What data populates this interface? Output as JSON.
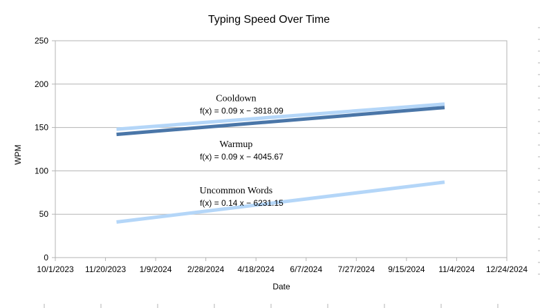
{
  "chart_data": {
    "type": "line",
    "title": "Typing Speed Over Time",
    "xlabel": "Date",
    "ylabel": "WPM",
    "x_axis_type": "date",
    "xlim": [
      "2023-10-01",
      "2024-12-24"
    ],
    "x_tick_labels": [
      "10/1/2023",
      "11/20/2023",
      "1/9/2024",
      "2/28/2024",
      "4/18/2024",
      "6/7/2024",
      "7/27/2024",
      "9/15/2024",
      "11/4/2024",
      "12/24/2024"
    ],
    "ylim": [
      0,
      250
    ],
    "y_ticks": [
      0,
      50,
      100,
      150,
      200,
      250
    ],
    "grid": true,
    "series": [
      {
        "name": "Cooldown",
        "equation": "f(x) = 0.09 x − 3818.09",
        "color": "#b4d6f8",
        "points": [
          {
            "x": "2023-12-01",
            "y": 148
          },
          {
            "x": "2024-10-23",
            "y": 177
          }
        ]
      },
      {
        "name": "Warmup",
        "equation": "f(x) = 0.09 x − 4045.67",
        "color": "#4a76a8",
        "points": [
          {
            "x": "2023-12-01",
            "y": 142
          },
          {
            "x": "2024-10-23",
            "y": 173
          }
        ]
      },
      {
        "name": "Uncommon Words",
        "equation": "f(x) = 0.14 x − 6231.15",
        "color": "#b4d6f8",
        "points": [
          {
            "x": "2023-12-01",
            "y": 41
          },
          {
            "x": "2024-10-23",
            "y": 87
          }
        ]
      }
    ]
  }
}
